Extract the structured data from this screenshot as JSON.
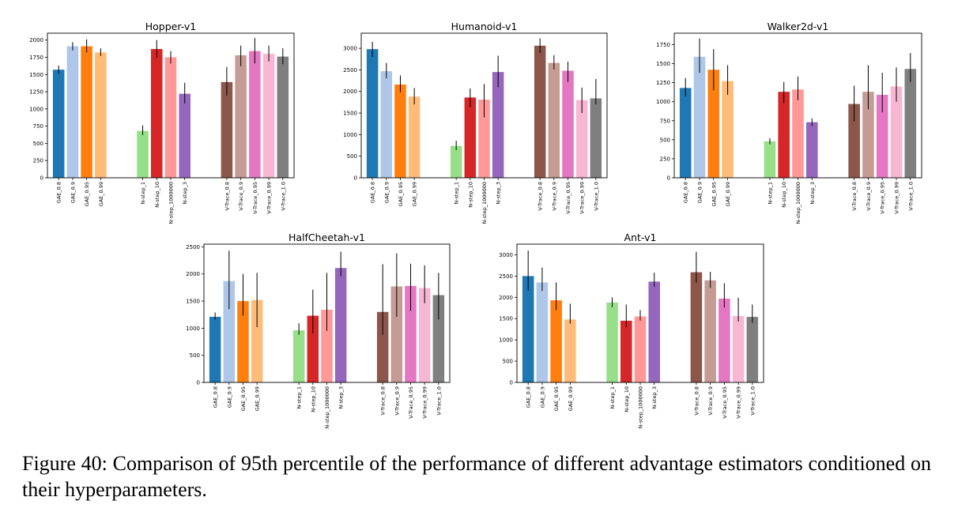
{
  "figure": {
    "caption_label": "Figure 40:",
    "caption_text": "Comparison of 95th percentile of the performance of different advantage estimators conditioned on their hyperparameters."
  },
  "chart_data": [
    {
      "type": "bar",
      "title": "Hopper-v1",
      "categories": [
        "GAE_0.8",
        "GAE_0.9",
        "GAE_0.95",
        "GAE_0.99",
        "N-step_1",
        "N-step_10",
        "N-step_1000000",
        "N-step_3",
        "V-Trace_0.8",
        "V-Trace_0.9",
        "V-Trace_0.95",
        "V-Trace_0.99",
        "V-Trace_1.0"
      ],
      "groups": [
        4,
        4,
        5
      ],
      "colors": [
        "#1f77b4",
        "#aec7e8",
        "#ff7f0e",
        "#ffbb78",
        "#98df8a",
        "#d62728",
        "#ff9896",
        "#9467bd",
        "#8c564b",
        "#c49c94",
        "#e377c2",
        "#f7b6d2",
        "#7f7f7f"
      ],
      "values": [
        1570,
        1910,
        1910,
        1820,
        680,
        1870,
        1750,
        1220,
        1390,
        1780,
        1840,
        1800,
        1760
      ],
      "err_low": [
        1510,
        1850,
        1820,
        1770,
        620,
        1740,
        1660,
        1080,
        1190,
        1620,
        1660,
        1690,
        1650
      ],
      "err_high": [
        1630,
        1970,
        2010,
        1880,
        760,
        2000,
        1840,
        1380,
        1610,
        1920,
        2030,
        1920,
        1880
      ],
      "ylim": [
        0,
        2100
      ],
      "yticks": [
        0,
        250,
        500,
        750,
        1000,
        1250,
        1500,
        1750,
        2000
      ],
      "ytick_labels": [
        "0",
        "250",
        "500",
        "750",
        "1000",
        "1250",
        "1500",
        "1750",
        "2000"
      ]
    },
    {
      "type": "bar",
      "title": "Humanoid-v1",
      "categories": [
        "GAE_0.8",
        "GAE_0.9",
        "GAE_0.95",
        "GAE_0.99",
        "N-step_1",
        "N-step_10",
        "N-step_1000000",
        "N-step_3",
        "V-Trace_0.8",
        "V-Trace_0.9",
        "V-Trace_0.95",
        "V-Trace_0.99",
        "V-Trace_1.0"
      ],
      "groups": [
        4,
        4,
        5
      ],
      "colors": [
        "#1f77b4",
        "#aec7e8",
        "#ff7f0e",
        "#ffbb78",
        "#98df8a",
        "#d62728",
        "#ff9896",
        "#9467bd",
        "#8c564b",
        "#c49c94",
        "#e377c2",
        "#f7b6d2",
        "#7f7f7f"
      ],
      "values": [
        2980,
        2470,
        2160,
        1880,
        740,
        1860,
        1810,
        2450,
        3060,
        2660,
        2480,
        1800,
        1840
      ],
      "err_low": [
        2800,
        2300,
        1980,
        1700,
        640,
        1630,
        1400,
        2100,
        2890,
        2510,
        2220,
        1500,
        1700
      ],
      "err_high": [
        3150,
        2660,
        2370,
        2080,
        860,
        2070,
        2170,
        2830,
        3230,
        2840,
        2690,
        2090,
        2290
      ],
      "ylim": [
        0,
        3350
      ],
      "yticks": [
        0,
        500,
        1000,
        1500,
        2000,
        2500,
        3000
      ],
      "ytick_labels": [
        "0",
        "500",
        "1000",
        "1500",
        "2000",
        "2500",
        "3000"
      ]
    },
    {
      "type": "bar",
      "title": "Walker2d-v1",
      "categories": [
        "GAE_0.8",
        "GAE_0.9",
        "GAE_0.95",
        "GAE_0.99",
        "N-step_1",
        "N-step_10",
        "N-step_1000000",
        "N-step_3",
        "V-Trace_0.8",
        "V-Trace_0.9",
        "V-Trace_0.95",
        "V-Trace_0.99",
        "V-Trace_1.0"
      ],
      "groups": [
        4,
        4,
        5
      ],
      "colors": [
        "#1f77b4",
        "#aec7e8",
        "#ff7f0e",
        "#ffbb78",
        "#98df8a",
        "#d62728",
        "#ff9896",
        "#9467bd",
        "#8c564b",
        "#c49c94",
        "#e377c2",
        "#f7b6d2",
        "#7f7f7f"
      ],
      "values": [
        1180,
        1590,
        1420,
        1270,
        480,
        1130,
        1160,
        730,
        970,
        1130,
        1090,
        1200,
        1430
      ],
      "err_low": [
        1070,
        1380,
        1150,
        1090,
        440,
        980,
        1020,
        680,
        740,
        900,
        860,
        1000,
        1260
      ],
      "err_high": [
        1310,
        1830,
        1690,
        1480,
        520,
        1260,
        1330,
        780,
        1210,
        1480,
        1380,
        1450,
        1640
      ],
      "ylim": [
        0,
        1900
      ],
      "yticks": [
        0,
        250,
        500,
        750,
        1000,
        1250,
        1500,
        1750
      ],
      "ytick_labels": [
        "0",
        "250",
        "500",
        "750",
        "1000",
        "1250",
        "1500",
        "1750"
      ]
    },
    {
      "type": "bar",
      "title": "HalfCheetah-v1",
      "categories": [
        "GAE_0.8",
        "GAE_0.9",
        "GAE_0.95",
        "GAE_0.99",
        "N-step_1",
        "N-step_10",
        "N-step_1000000",
        "N-step_3",
        "V-Trace_0.8",
        "V-Trace_0.9",
        "V-Trace_0.95",
        "V-Trace_0.99",
        "V-Trace_1.0"
      ],
      "groups": [
        4,
        4,
        5
      ],
      "colors": [
        "#1f77b4",
        "#aec7e8",
        "#ff7f0e",
        "#ffbb78",
        "#98df8a",
        "#d62728",
        "#ff9896",
        "#9467bd",
        "#8c564b",
        "#c49c94",
        "#e377c2",
        "#f7b6d2",
        "#7f7f7f"
      ],
      "values": [
        1210,
        1870,
        1500,
        1520,
        960,
        1230,
        1340,
        2110,
        1300,
        1770,
        1780,
        1740,
        1610
      ],
      "err_low": [
        1160,
        1350,
        1230,
        1020,
        880,
        900,
        950,
        1960,
        880,
        1210,
        1320,
        1460,
        1160
      ],
      "err_high": [
        1290,
        2430,
        2000,
        2020,
        1090,
        1710,
        2020,
        2410,
        2180,
        2380,
        2190,
        2160,
        2020
      ],
      "ylim": [
        0,
        2550
      ],
      "yticks": [
        0,
        500,
        1000,
        1500,
        2000,
        2500
      ],
      "ytick_labels": [
        "0",
        "500",
        "1000",
        "1500",
        "2000",
        "2500"
      ]
    },
    {
      "type": "bar",
      "title": "Ant-v1",
      "categories": [
        "GAE_0.8",
        "GAE_0.9",
        "GAE_0.95",
        "GAE_0.99",
        "N-step_1",
        "N-step_10",
        "N-step_1000000",
        "N-step_3",
        "V-Trace_0.8",
        "V-Trace_0.9",
        "V-Trace_0.95",
        "V-Trace_0.99",
        "V-Trace_1.0"
      ],
      "groups": [
        4,
        4,
        5
      ],
      "colors": [
        "#1f77b4",
        "#aec7e8",
        "#ff7f0e",
        "#ffbb78",
        "#98df8a",
        "#d62728",
        "#ff9896",
        "#9467bd",
        "#8c564b",
        "#c49c94",
        "#e377c2",
        "#f7b6d2",
        "#7f7f7f"
      ],
      "values": [
        2500,
        2350,
        1930,
        1480,
        1880,
        1450,
        1550,
        2370,
        2590,
        2400,
        1970,
        1560,
        1540
      ],
      "err_low": [
        2160,
        2150,
        1700,
        1380,
        1770,
        1300,
        1450,
        2250,
        2340,
        2220,
        1760,
        1430,
        1400
      ],
      "err_high": [
        3100,
        2700,
        2350,
        1850,
        2000,
        1830,
        1700,
        2580,
        3070,
        2600,
        2330,
        1990,
        1830
      ],
      "ylim": [
        0,
        3250
      ],
      "yticks": [
        0,
        500,
        1000,
        1500,
        2000,
        2500,
        3000
      ],
      "ytick_labels": [
        "0",
        "500",
        "1000",
        "1500",
        "2000",
        "2500",
        "3000"
      ]
    }
  ]
}
